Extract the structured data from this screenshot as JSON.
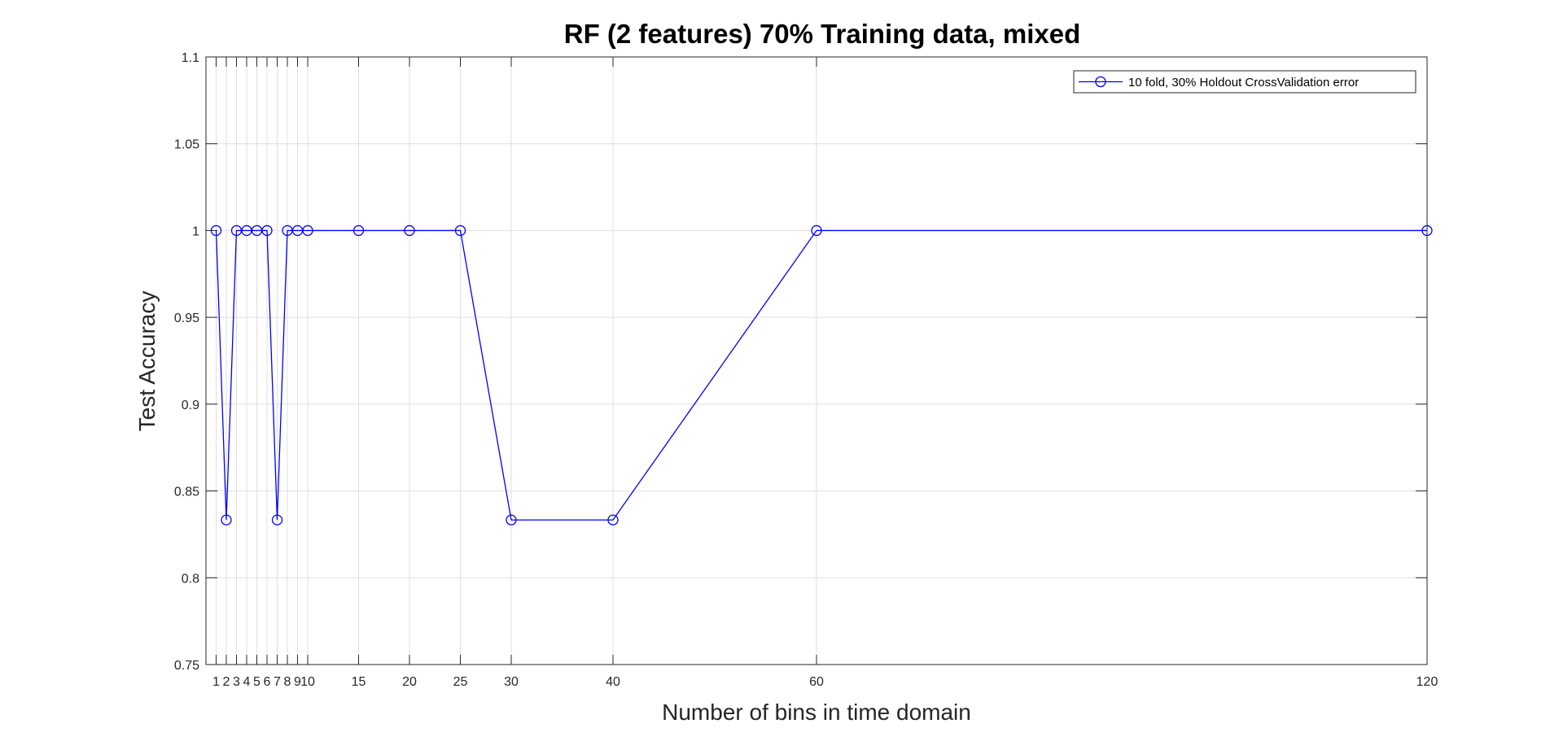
{
  "chart_data": {
    "type": "line",
    "title": "RF (2 features) 70% Training data, mixed",
    "xlabel": "Number of bins in time domain",
    "ylabel": "Test Accuracy",
    "x": [
      1,
      2,
      3,
      4,
      5,
      6,
      7,
      8,
      9,
      10,
      15,
      20,
      25,
      30,
      40,
      60,
      120
    ],
    "series": [
      {
        "name": "10 fold, 30% Holdout CrossValidation error",
        "color": "#0000ff",
        "marker": "circle",
        "values": [
          1,
          0.8333,
          1,
          1,
          1,
          1,
          0.8333,
          1,
          1,
          1,
          1,
          1,
          1,
          0.8333,
          0.8333,
          1,
          1
        ]
      }
    ],
    "xlim": [
      0,
      120
    ],
    "ylim": [
      0.75,
      1.1
    ],
    "xticks": [
      1,
      2,
      3,
      4,
      5,
      6,
      7,
      8,
      9,
      10,
      15,
      20,
      25,
      30,
      40,
      60,
      120
    ],
    "xtick_labels": [
      "1",
      "2",
      "3",
      "4",
      "5",
      "6",
      "7",
      "8",
      "9",
      "10",
      "15",
      "20",
      "25",
      "30",
      "40",
      "60",
      "120"
    ],
    "yticks": [
      0.75,
      0.8,
      0.85,
      0.9,
      0.95,
      1,
      1.05,
      1.1
    ],
    "ytick_labels": [
      "0.75",
      "0.8",
      "0.85",
      "0.9",
      "0.95",
      "1",
      "1.05",
      "1.1"
    ],
    "grid": true,
    "legend_position": "top-right"
  }
}
